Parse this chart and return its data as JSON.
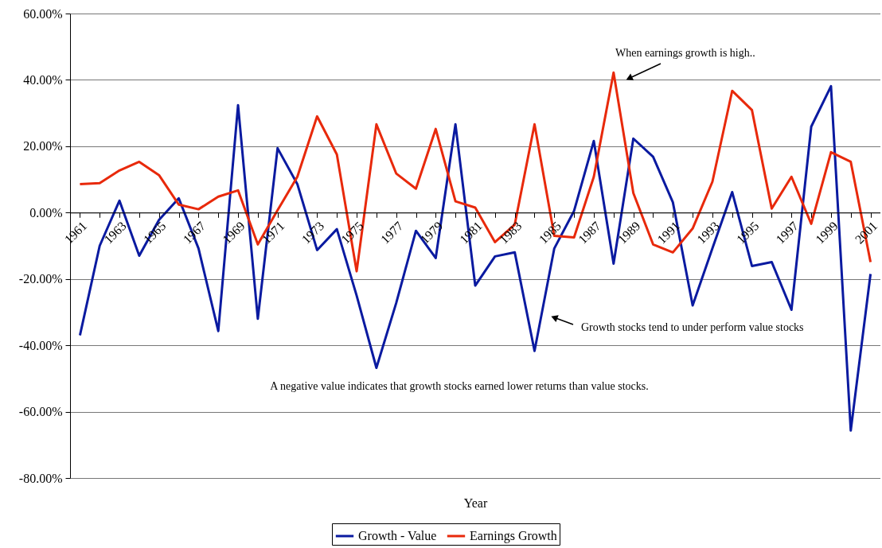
{
  "chart_data": {
    "type": "line",
    "xlabel": "Year",
    "categories": [
      "1961",
      null,
      "1963",
      null,
      "1965",
      null,
      "1967",
      null,
      "1969",
      null,
      "1971",
      null,
      "1973",
      null,
      "1975",
      null,
      "1977",
      null,
      "1979",
      null,
      "1981",
      null,
      "1983",
      null,
      "1985",
      null,
      "1987",
      null,
      "1989",
      null,
      "1991",
      null,
      "1993",
      null,
      "1995",
      null,
      "1997",
      null,
      "1999",
      null,
      "2001"
    ],
    "series": [
      {
        "name": "Growth - Value",
        "color": "#0a1aa0",
        "values": [
          -37,
          -10,
          3.6,
          -13,
          -2.2,
          4.3,
          -10.8,
          -35.7,
          32.4,
          -32,
          19.4,
          8.6,
          -11.3,
          -5,
          -25,
          -46.8,
          -27.3,
          -5.5,
          -13.7,
          26.6,
          -22,
          -13.2,
          -12,
          -41.7,
          -10.8,
          0.5,
          21.6,
          -15.4,
          22.3,
          16.8,
          3.1,
          -28,
          -10.8,
          6.2,
          -16.1,
          -14.9,
          -29.3,
          25.9,
          38.1,
          -65.7,
          -18.5
        ]
      },
      {
        "name": "Earnings Growth",
        "color": "#e8290b",
        "values": [
          8.6,
          8.9,
          12.7,
          15.3,
          11.3,
          2.4,
          1.0,
          4.8,
          6.7,
          -9.6,
          0.7,
          10.8,
          29.0,
          17.5,
          -17.7,
          26.6,
          11.8,
          7.2,
          25.2,
          3.4,
          1.5,
          -8.9,
          -3.6,
          26.6,
          -7,
          -7.5,
          10.8,
          42.2,
          5.9,
          -9.6,
          -12,
          -4.8,
          9.3,
          36.7,
          30.9,
          1.2,
          10.8,
          -3.4,
          18.2,
          15.3,
          -14.9
        ]
      }
    ],
    "ylim": [
      -80,
      60
    ],
    "yticks": [
      {
        "value": -80,
        "label": "-80.00%"
      },
      {
        "value": -60,
        "label": "-60.00%"
      },
      {
        "value": -40,
        "label": "-40.00%"
      },
      {
        "value": -20,
        "label": "-20.00%"
      },
      {
        "value": 0,
        "label": "0.00%"
      },
      {
        "value": 20,
        "label": "20.00%"
      },
      {
        "value": 40,
        "label": "40.00%"
      },
      {
        "value": 60,
        "label": "60.00%"
      }
    ],
    "grid": "y",
    "legend": "bottom",
    "marker": "none",
    "line_style": "solid",
    "annotations": [
      "When earnings growth is high..",
      "Growth stocks tend to under perform value stocks",
      "A negative value indicates that growth stocks earned lower returns than value stocks."
    ]
  }
}
